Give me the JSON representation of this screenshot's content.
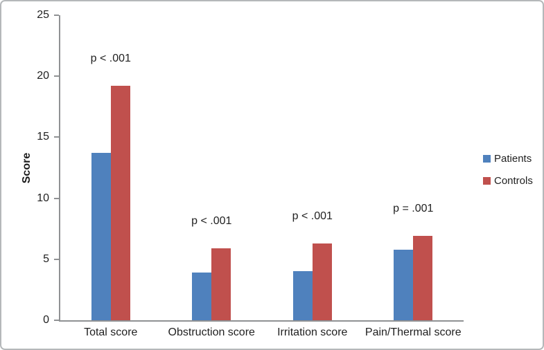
{
  "chart_data": {
    "type": "bar",
    "categories": [
      "Total score",
      "Obstruction score",
      "Irritation score",
      "Pain/Thermal score"
    ],
    "series": [
      {
        "name": "Patients",
        "color": "#4F81BD",
        "values": [
          13.7,
          3.9,
          4.0,
          5.8
        ]
      },
      {
        "name": "Controls",
        "color": "#C0504D",
        "values": [
          19.2,
          5.9,
          6.3,
          6.9
        ]
      }
    ],
    "annotations": [
      "p < .001",
      "p < .001",
      "p < .001",
      "p = .001"
    ],
    "title": "",
    "xlabel": "",
    "ylabel": "Score",
    "ylim": [
      0,
      25
    ],
    "yticks": [
      0,
      5,
      10,
      15,
      20,
      25
    ],
    "grid": false,
    "legend_position": "right"
  }
}
